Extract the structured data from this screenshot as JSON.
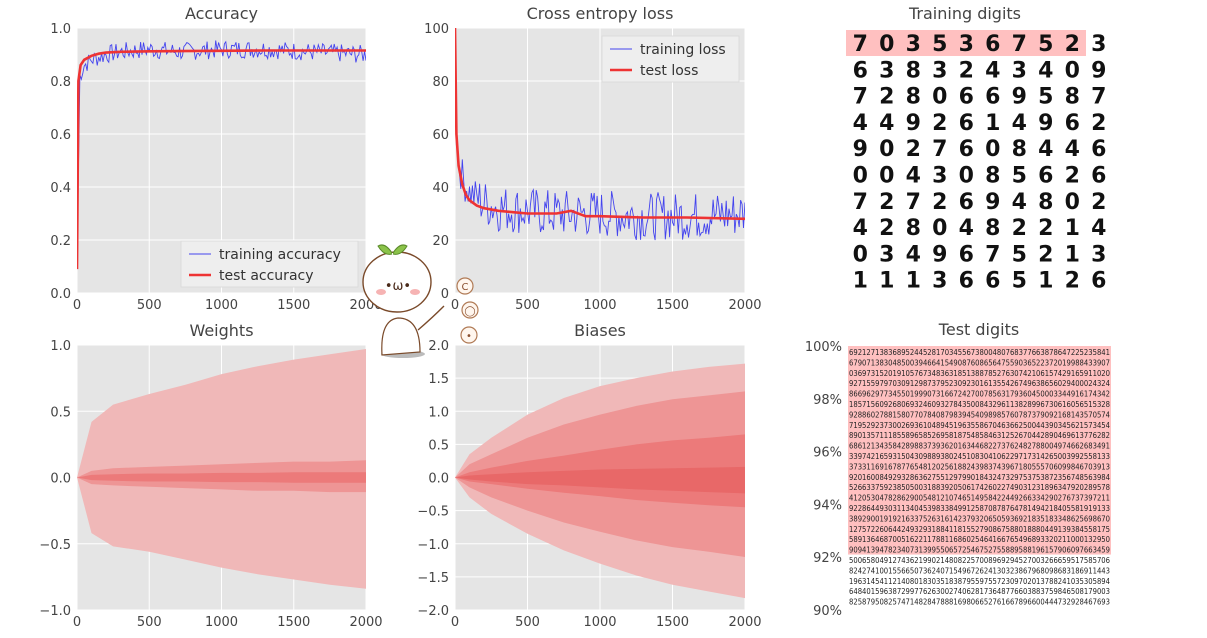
{
  "chart_data": [
    {
      "type": "line",
      "title": "Accuracy",
      "xlabel": "",
      "ylabel": "",
      "xlim": [
        0,
        2000
      ],
      "ylim": [
        0.0,
        1.0
      ],
      "xticks": [
        "0",
        "500",
        "1000",
        "1500",
        "2000"
      ],
      "yticks": [
        "0.0",
        "0.2",
        "0.4",
        "0.6",
        "0.8",
        "1.0"
      ],
      "grid": true,
      "legend_position": "bottom-right",
      "series": [
        {
          "name": "training accuracy",
          "color": "#4444ee",
          "style": "noisy",
          "x": [
            0,
            20,
            50,
            100,
            200,
            300,
            500,
            700,
            1000,
            1300,
            1600,
            2000
          ],
          "values": [
            0.1,
            0.82,
            0.86,
            0.88,
            0.9,
            0.91,
            0.92,
            0.91,
            0.92,
            0.92,
            0.91,
            0.9
          ]
        },
        {
          "name": "test accuracy",
          "color": "#ee3333",
          "x": [
            0,
            10,
            25,
            50,
            100,
            150,
            200,
            300,
            500,
            700,
            1000,
            1300,
            1600,
            2000
          ],
          "values": [
            0.09,
            0.8,
            0.86,
            0.88,
            0.895,
            0.903,
            0.907,
            0.91,
            0.912,
            0.913,
            0.914,
            0.915,
            0.915,
            0.915
          ]
        }
      ]
    },
    {
      "type": "line",
      "title": "Cross entropy loss",
      "xlabel": "",
      "ylabel": "",
      "xlim": [
        0,
        2000
      ],
      "ylim": [
        0,
        100
      ],
      "xticks": [
        "0",
        "500",
        "1000",
        "1500",
        "2000"
      ],
      "yticks": [
        "0",
        "20",
        "40",
        "60",
        "80",
        "100"
      ],
      "grid": true,
      "legend_position": "top-right",
      "series": [
        {
          "name": "training loss",
          "color": "#4444ee",
          "style": "noisy",
          "x": [
            0,
            10,
            30,
            60,
            100,
            200,
            300,
            500,
            700,
            1000,
            1300,
            1600,
            2000
          ],
          "values": [
            100,
            60,
            48,
            42,
            38,
            34,
            32,
            31,
            30,
            30,
            29,
            29,
            30
          ]
        },
        {
          "name": "test loss",
          "color": "#ee3333",
          "x": [
            0,
            10,
            25,
            50,
            75,
            100,
            150,
            200,
            300,
            400,
            500,
            700,
            800,
            900,
            1000,
            1300,
            1600,
            2000
          ],
          "values": [
            100,
            60,
            48,
            41,
            37,
            35,
            33,
            32,
            31,
            30.5,
            30,
            30,
            31,
            29,
            29,
            28.5,
            28.5,
            28
          ]
        }
      ]
    },
    {
      "type": "area",
      "title": "Weights",
      "xlabel": "",
      "ylabel": "",
      "xlim": [
        0,
        2000
      ],
      "ylim": [
        -1.0,
        1.0
      ],
      "xticks": [
        "0",
        "500",
        "1000",
        "1500",
        "2000"
      ],
      "yticks": [
        "−1.0",
        "−0.5",
        "0.0",
        "0.5",
        "1.0"
      ],
      "grid": true,
      "x": [
        0,
        100,
        250,
        500,
        750,
        1000,
        1250,
        1500,
        1750,
        2000
      ],
      "bands": [
        {
          "color": "#f0b8b8",
          "upper": [
            0.0,
            0.42,
            0.55,
            0.63,
            0.7,
            0.78,
            0.84,
            0.89,
            0.93,
            0.97
          ],
          "lower": [
            0.0,
            -0.42,
            -0.52,
            -0.56,
            -0.62,
            -0.68,
            -0.73,
            -0.77,
            -0.81,
            -0.84
          ]
        },
        {
          "color": "#ee9595",
          "upper": [
            0.0,
            0.05,
            0.07,
            0.08,
            0.09,
            0.1,
            0.11,
            0.12,
            0.12,
            0.13
          ],
          "lower": [
            0.0,
            -0.05,
            -0.06,
            -0.07,
            -0.08,
            -0.09,
            -0.1,
            -0.1,
            -0.11,
            -0.11
          ]
        },
        {
          "color": "#ec7a7a",
          "upper": [
            0.0,
            0.02,
            0.025,
            0.03,
            0.03,
            0.035,
            0.035,
            0.04,
            0.04,
            0.04
          ],
          "lower": [
            0.0,
            -0.02,
            -0.025,
            -0.03,
            -0.03,
            -0.035,
            -0.035,
            -0.04,
            -0.04,
            -0.04
          ]
        }
      ]
    },
    {
      "type": "area",
      "title": "Biases",
      "xlabel": "",
      "ylabel": "",
      "xlim": [
        0,
        2000
      ],
      "ylim": [
        -2.0,
        2.0
      ],
      "xticks": [
        "0",
        "500",
        "1000",
        "1500",
        "2000"
      ],
      "yticks": [
        "−2.0",
        "−1.5",
        "−1.0",
        "−0.5",
        "0.0",
        "0.5",
        "1.0",
        "1.5",
        "2.0"
      ],
      "grid": true,
      "x": [
        0,
        100,
        250,
        500,
        750,
        1000,
        1250,
        1500,
        1750,
        2000
      ],
      "bands": [
        {
          "color": "#f0b8b8",
          "upper": [
            0.0,
            0.35,
            0.6,
            0.95,
            1.2,
            1.38,
            1.5,
            1.6,
            1.67,
            1.72
          ],
          "lower": [
            0.0,
            -0.3,
            -0.55,
            -0.85,
            -1.1,
            -1.3,
            -1.48,
            -1.62,
            -1.72,
            -1.82
          ]
        },
        {
          "color": "#ee9595",
          "upper": [
            0.0,
            0.2,
            0.35,
            0.6,
            0.8,
            0.95,
            1.08,
            1.18,
            1.24,
            1.3
          ],
          "lower": [
            0.0,
            -0.15,
            -0.3,
            -0.5,
            -0.68,
            -0.82,
            -0.95,
            -1.05,
            -1.12,
            -1.2
          ]
        },
        {
          "color": "#ec7a7a",
          "upper": [
            0.0,
            0.08,
            0.15,
            0.25,
            0.33,
            0.42,
            0.5,
            0.56,
            0.6,
            0.65
          ],
          "lower": [
            0.0,
            -0.06,
            -0.1,
            -0.17,
            -0.23,
            -0.28,
            -0.34,
            -0.38,
            -0.42,
            -0.45
          ]
        },
        {
          "color": "#e86868",
          "upper": [
            0.0,
            0.03,
            0.05,
            0.08,
            0.1,
            0.12,
            0.13,
            0.14,
            0.15,
            0.16
          ],
          "lower": [
            0.0,
            -0.03,
            -0.06,
            -0.1,
            -0.12,
            -0.15,
            -0.18,
            -0.2,
            -0.22,
            -0.24
          ]
        }
      ]
    }
  ],
  "training_digits": {
    "title": "Training digits",
    "rows": [
      [
        "7",
        "0",
        "3",
        "5",
        "3",
        "6",
        "7",
        "5",
        "2",
        "3"
      ],
      [
        "6",
        "3",
        "8",
        "3",
        "2",
        "4",
        "3",
        "4",
        "0",
        "9"
      ],
      [
        "7",
        "2",
        "8",
        "0",
        "6",
        "6",
        "9",
        "5",
        "8",
        "7"
      ],
      [
        "4",
        "4",
        "9",
        "2",
        "6",
        "1",
        "4",
        "9",
        "6",
        "2"
      ],
      [
        "9",
        "0",
        "2",
        "7",
        "6",
        "0",
        "8",
        "4",
        "4",
        "6"
      ],
      [
        "0",
        "0",
        "4",
        "3",
        "0",
        "8",
        "5",
        "6",
        "2",
        "6"
      ],
      [
        "7",
        "2",
        "7",
        "2",
        "6",
        "9",
        "4",
        "8",
        "0",
        "2"
      ],
      [
        "4",
        "2",
        "8",
        "0",
        "4",
        "8",
        "2",
        "2",
        "1",
        "4"
      ],
      [
        "0",
        "3",
        "4",
        "9",
        "6",
        "7",
        "5",
        "2",
        "1",
        "3"
      ],
      [
        "1",
        "1",
        "1",
        "3",
        "6",
        "6",
        "5",
        "1",
        "2",
        "6"
      ]
    ],
    "highlighted_count": 9,
    "highlight_color": "#ffc0c0"
  },
  "test_digits": {
    "title": "Test digits",
    "yticks": [
      "100%",
      "98%",
      "96%",
      "94%",
      "92%",
      "90%"
    ],
    "highlight_fraction": 0.79,
    "highlight_color": "#ffc0c0"
  },
  "mascot": {
    "face": "•ω•",
    "icons": [
      "c-icon",
      "o-icon",
      "shirt-icon"
    ],
    "icon_glyphs": [
      "C",
      "◯",
      "•"
    ]
  }
}
